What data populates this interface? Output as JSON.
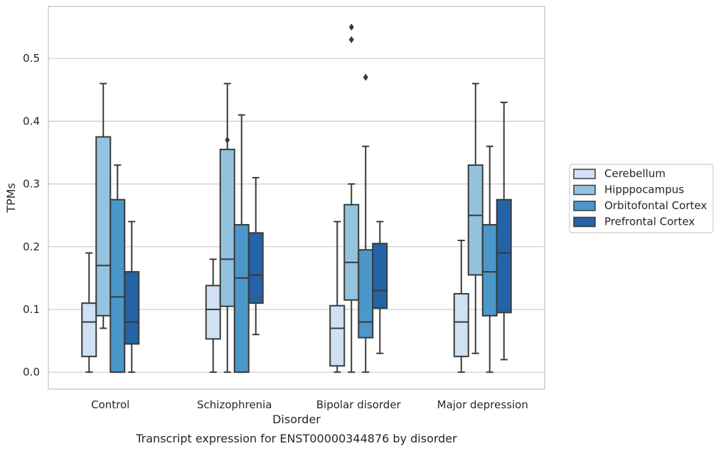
{
  "chart_data": {
    "type": "box",
    "caption": "Transcript expression for ENST00000344876 by disorder",
    "xlabel": "Disorder",
    "ylabel": "TPMs",
    "ylim": [
      -0.027,
      0.583
    ],
    "yticks": [
      0.0,
      0.1,
      0.2,
      0.3,
      0.4,
      0.5
    ],
    "ytick_labels": [
      "0.0",
      "0.1",
      "0.2",
      "0.3",
      "0.4",
      "0.5"
    ],
    "grid": "horizontal",
    "legend_position": "right",
    "categories": [
      "Control",
      "Schizophrenia",
      "Bipolar disorder",
      "Major depression"
    ],
    "series": [
      {
        "name": "Cerebellum",
        "color": "#cfe1f2",
        "boxes": [
          {
            "whisker_low": 0.0,
            "q1": 0.025,
            "median": 0.08,
            "q3": 0.11,
            "whisker_high": 0.19,
            "outliers": []
          },
          {
            "whisker_low": 0.0,
            "q1": 0.053,
            "median": 0.1,
            "q3": 0.138,
            "whisker_high": 0.18,
            "outliers": []
          },
          {
            "whisker_low": 0.0,
            "q1": 0.01,
            "median": 0.07,
            "q3": 0.106,
            "whisker_high": 0.24,
            "outliers": []
          },
          {
            "whisker_low": 0.0,
            "q1": 0.025,
            "median": 0.08,
            "q3": 0.125,
            "whisker_high": 0.21,
            "outliers": []
          }
        ]
      },
      {
        "name": "Hipppocampus",
        "color": "#93c3df",
        "boxes": [
          {
            "whisker_low": 0.07,
            "q1": 0.09,
            "median": 0.17,
            "q3": 0.375,
            "whisker_high": 0.46,
            "outliers": []
          },
          {
            "whisker_low": 0.0,
            "q1": 0.105,
            "median": 0.18,
            "q3": 0.355,
            "whisker_high": 0.46,
            "outliers": [
              0.37
            ]
          },
          {
            "whisker_low": 0.0,
            "q1": 0.115,
            "median": 0.175,
            "q3": 0.267,
            "whisker_high": 0.3,
            "outliers": [
              0.53,
              0.55
            ]
          },
          {
            "whisker_low": 0.03,
            "q1": 0.155,
            "median": 0.25,
            "q3": 0.33,
            "whisker_high": 0.46,
            "outliers": []
          }
        ]
      },
      {
        "name": "Orbitofontal Cortex",
        "color": "#4b97c9",
        "boxes": [
          {
            "whisker_low": 0.0,
            "q1": 0.0,
            "median": 0.12,
            "q3": 0.275,
            "whisker_high": 0.33,
            "outliers": []
          },
          {
            "whisker_low": 0.0,
            "q1": 0.0,
            "median": 0.15,
            "q3": 0.235,
            "whisker_high": 0.41,
            "outliers": []
          },
          {
            "whisker_low": 0.0,
            "q1": 0.055,
            "median": 0.08,
            "q3": 0.195,
            "whisker_high": 0.36,
            "outliers": [
              0.47
            ]
          },
          {
            "whisker_low": 0.0,
            "q1": 0.09,
            "median": 0.16,
            "q3": 0.235,
            "whisker_high": 0.36,
            "outliers": []
          }
        ]
      },
      {
        "name": "Prefrontal Cortex",
        "color": "#2363a6",
        "boxes": [
          {
            "whisker_low": 0.0,
            "q1": 0.045,
            "median": 0.08,
            "q3": 0.16,
            "whisker_high": 0.24,
            "outliers": []
          },
          {
            "whisker_low": 0.06,
            "q1": 0.11,
            "median": 0.155,
            "q3": 0.222,
            "whisker_high": 0.31,
            "outliers": []
          },
          {
            "whisker_low": 0.03,
            "q1": 0.102,
            "median": 0.13,
            "q3": 0.205,
            "whisker_high": 0.24,
            "outliers": []
          },
          {
            "whisker_low": 0.02,
            "q1": 0.095,
            "median": 0.19,
            "q3": 0.275,
            "whisker_high": 0.43,
            "outliers": []
          }
        ]
      }
    ]
  }
}
